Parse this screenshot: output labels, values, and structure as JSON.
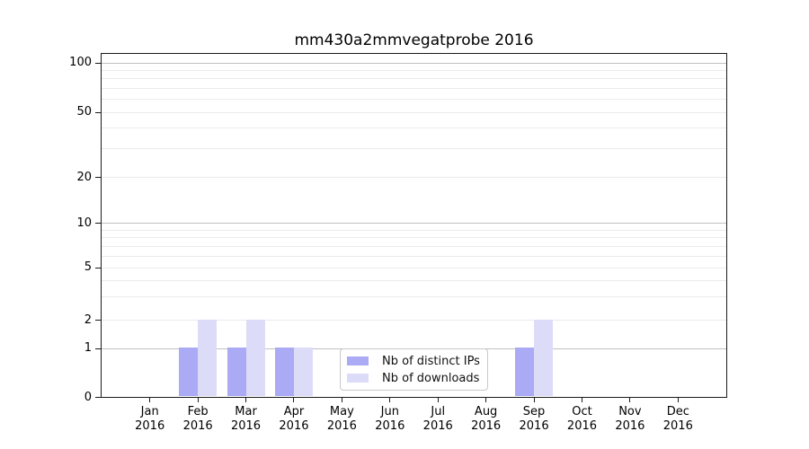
{
  "chart_data": {
    "type": "bar",
    "title": "mm430a2mmvegatprobe 2016",
    "categories": [
      "Jan 2016",
      "Feb 2016",
      "Mar 2016",
      "Apr 2016",
      "May 2016",
      "Jun 2016",
      "Jul 2016",
      "Aug 2016",
      "Sep 2016",
      "Oct 2016",
      "Nov 2016",
      "Dec 2016"
    ],
    "month_labels": [
      "Jan",
      "Feb",
      "Mar",
      "Apr",
      "May",
      "Jun",
      "Jul",
      "Aug",
      "Sep",
      "Oct",
      "Nov",
      "Dec"
    ],
    "year_label": "2016",
    "series": [
      {
        "name": "Nb of distinct IPs",
        "color": "#aaaaf5",
        "values": [
          0,
          1,
          1,
          1,
          0,
          0,
          0,
          0,
          1,
          0,
          0,
          0
        ]
      },
      {
        "name": "Nb of downloads",
        "color": "#dcdcf8",
        "values": [
          0,
          2,
          2,
          1,
          0,
          0,
          0,
          0,
          2,
          0,
          0,
          0
        ]
      }
    ],
    "y_axis": {
      "scale": "log-with-zero",
      "major_tick_labels": [
        0,
        1,
        2,
        5,
        10,
        20,
        50,
        100
      ],
      "major_gridline_values": [
        1,
        10,
        100
      ],
      "minor_gridline_values": [
        2,
        3,
        4,
        5,
        6,
        7,
        8,
        9,
        20,
        30,
        40,
        50,
        60,
        70,
        80,
        90
      ],
      "ylim_bottom": 0,
      "ylim_top_approx": 110
    },
    "x_axis": {
      "tick_label_lines": 2
    },
    "grid": true,
    "legend": {
      "position": "lower center",
      "entries": [
        "Nb of distinct IPs",
        "Nb of downloads"
      ]
    },
    "colors": {
      "major_grid": "#c0c0c0",
      "minor_grid": "#ebebeb",
      "axis": "#1a1a1a",
      "background": "#ffffff"
    }
  }
}
